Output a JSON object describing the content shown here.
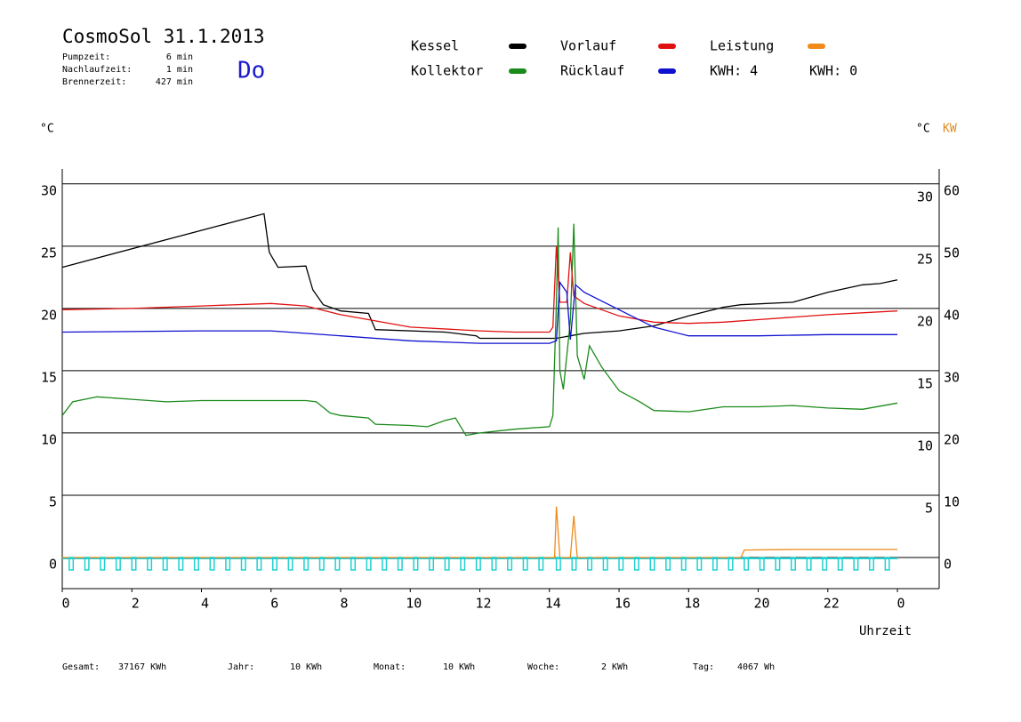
{
  "chart_data": {
    "type": "line",
    "title": "CosmoSol 31.1.2013",
    "info": [
      [
        "Pumpzeit:",
        "6 min"
      ],
      [
        "Nachlaufzeit:",
        "1 min"
      ],
      [
        "Brennerzeit:",
        "427 min"
      ]
    ],
    "day": "Do",
    "kwh_labels": [
      {
        "text": "KWH: 4",
        "color": "#e08a1e"
      },
      {
        "text": "KWH: 0",
        "color": "#8040a0"
      }
    ],
    "y_label": "°C",
    "y2_label_left": "°C",
    "y2_label": "KW",
    "x_label": "Uhrzeit",
    "xlim": [
      0,
      25.2
    ],
    "ylim": [
      -2.5,
      31.2
    ],
    "y2lim": [
      -5,
      62.4
    ],
    "xticks": [
      0,
      2,
      4,
      6,
      8,
      10,
      12,
      14,
      16,
      18,
      20,
      22,
      {
        "value": 24,
        "label": "0"
      }
    ],
    "yticks": [
      0,
      5,
      10,
      15,
      20,
      25,
      30
    ],
    "yticks_right": [
      5,
      10,
      15,
      20,
      25,
      30
    ],
    "y2ticks": [
      0,
      10,
      20,
      30,
      40,
      50,
      60
    ],
    "grid": true,
    "series": [
      {
        "name": "Kessel",
        "color": "#000000",
        "x": [
          0,
          5.8,
          5.95,
          6.2,
          7,
          7.2,
          7.5,
          8,
          8.8,
          9,
          11,
          11.9,
          12,
          14,
          14.2,
          14.6,
          15,
          16,
          17,
          18,
          19,
          19.5,
          21,
          22,
          23,
          23.5,
          24
        ],
        "values": [
          23.3,
          27.6,
          24.5,
          23.3,
          23.4,
          21.5,
          20.3,
          19.8,
          19.6,
          18.3,
          18.1,
          17.8,
          17.6,
          17.6,
          17.6,
          17.8,
          18,
          18.2,
          18.6,
          19.4,
          20.1,
          20.3,
          20.5,
          21.3,
          21.9,
          22.0,
          22.3
        ]
      },
      {
        "name": "Kollektor",
        "color": "#1a8a1a",
        "x": [
          0,
          0.3,
          1,
          2,
          3,
          4,
          5,
          6,
          7,
          7.3,
          7.7,
          8,
          8.8,
          9,
          10,
          10.5,
          11,
          11.3,
          11.6,
          12,
          13,
          14,
          14.1,
          14.2,
          14.25,
          14.3,
          14.4,
          14.6,
          14.7,
          14.8,
          15,
          15.15,
          15.5,
          16,
          16.6,
          17,
          18,
          19,
          20,
          21,
          22,
          23,
          24
        ],
        "values": [
          11.4,
          12.5,
          12.9,
          12.7,
          12.5,
          12.6,
          12.6,
          12.6,
          12.6,
          12.5,
          11.6,
          11.4,
          11.2,
          10.7,
          10.6,
          10.5,
          11,
          11.2,
          9.8,
          10,
          10.3,
          10.5,
          11.4,
          20.5,
          26.5,
          15,
          13.5,
          19,
          26.8,
          16.2,
          14.3,
          17,
          15.3,
          13.4,
          12.5,
          11.8,
          11.7,
          12.1,
          12.1,
          12.2,
          12,
          11.9,
          12.4
        ]
      },
      {
        "name": "Vorlauf",
        "color": "#e01010",
        "x": [
          0,
          2,
          4,
          6,
          7,
          8,
          9,
          10,
          12,
          13,
          14,
          14.1,
          14.2,
          14.3,
          14.5,
          14.6,
          14.7,
          15,
          16,
          17,
          18,
          19,
          20,
          22,
          24
        ],
        "values": [
          19.9,
          20,
          20.2,
          20.4,
          20.2,
          19.5,
          19,
          18.5,
          18.2,
          18.1,
          18.1,
          18.5,
          25,
          20.5,
          20.5,
          24.5,
          21,
          20.4,
          19.4,
          18.9,
          18.8,
          18.9,
          19.1,
          19.5,
          19.8
        ]
      },
      {
        "name": "Rücklauf",
        "color": "#1010d0",
        "x": [
          0,
          4,
          6,
          7,
          8,
          10,
          12,
          14,
          14.2,
          14.3,
          14.5,
          14.6,
          14.75,
          15,
          16,
          17,
          18,
          20,
          22,
          24
        ],
        "values": [
          18.1,
          18.2,
          18.2,
          18,
          17.8,
          17.4,
          17.2,
          17.2,
          17.4,
          22.1,
          21.3,
          17.5,
          21.9,
          21.3,
          19.9,
          18.5,
          17.8,
          17.8,
          17.9,
          17.9
        ]
      },
      {
        "name": "Leistung",
        "color": "#f08a1a",
        "axis": "y2",
        "x": [
          0,
          14.15,
          14.2,
          14.3,
          14.6,
          14.7,
          14.8,
          19.5,
          19.6,
          21,
          24
        ],
        "values": [
          0,
          0,
          8.2,
          0,
          0,
          6.7,
          0,
          0,
          1.2,
          1.3,
          1.3
        ]
      },
      {
        "type": "pulse",
        "color": "#20d0d0",
        "x": [
          0.2,
          0.65,
          1.1,
          1.55,
          2.0,
          2.45,
          2.9,
          3.35,
          3.8,
          4.25,
          4.7,
          5.15,
          5.6,
          6.05,
          6.5,
          6.95,
          7.4,
          7.85,
          8.3,
          8.75,
          9.2,
          9.65,
          10.1,
          10.55,
          11.0,
          11.45,
          11.9,
          12.35,
          12.8,
          13.25,
          13.7,
          14.2,
          14.65,
          15.1,
          15.55,
          16.0,
          16.45,
          16.9,
          17.35,
          17.8,
          18.25,
          18.7,
          19.15,
          19.6,
          20.05,
          20.5,
          20.95,
          21.4,
          21.85,
          22.3,
          22.75,
          23.2,
          23.65
        ],
        "values": [
          -1,
          -1,
          -1,
          -1,
          -1,
          -1,
          -1,
          -1,
          -1,
          -1,
          -1,
          -1,
          -1,
          -1,
          -1,
          -1,
          -1,
          -1,
          -1,
          -1,
          -1,
          -1,
          -1,
          -1,
          -1,
          -1,
          -1,
          -1,
          -1,
          -1,
          -1,
          -1,
          -1,
          -1,
          -1,
          -1,
          -1,
          -1,
          -1,
          -1,
          -1,
          -1,
          -1,
          -1,
          -1,
          -1,
          -1,
          -1,
          -1,
          -1,
          -1,
          -1,
          -1
        ]
      }
    ],
    "legend": [
      0,
      2,
      4,
      1,
      3
    ],
    "footer": [
      [
        "Gesamt:",
        "37167 KWh"
      ],
      [
        "Jahr:",
        "10 KWh"
      ],
      [
        "Monat:",
        "10 KWh"
      ],
      [
        "Woche:",
        "2 KWh"
      ],
      [
        "Tag:",
        "4067 Wh"
      ]
    ]
  }
}
